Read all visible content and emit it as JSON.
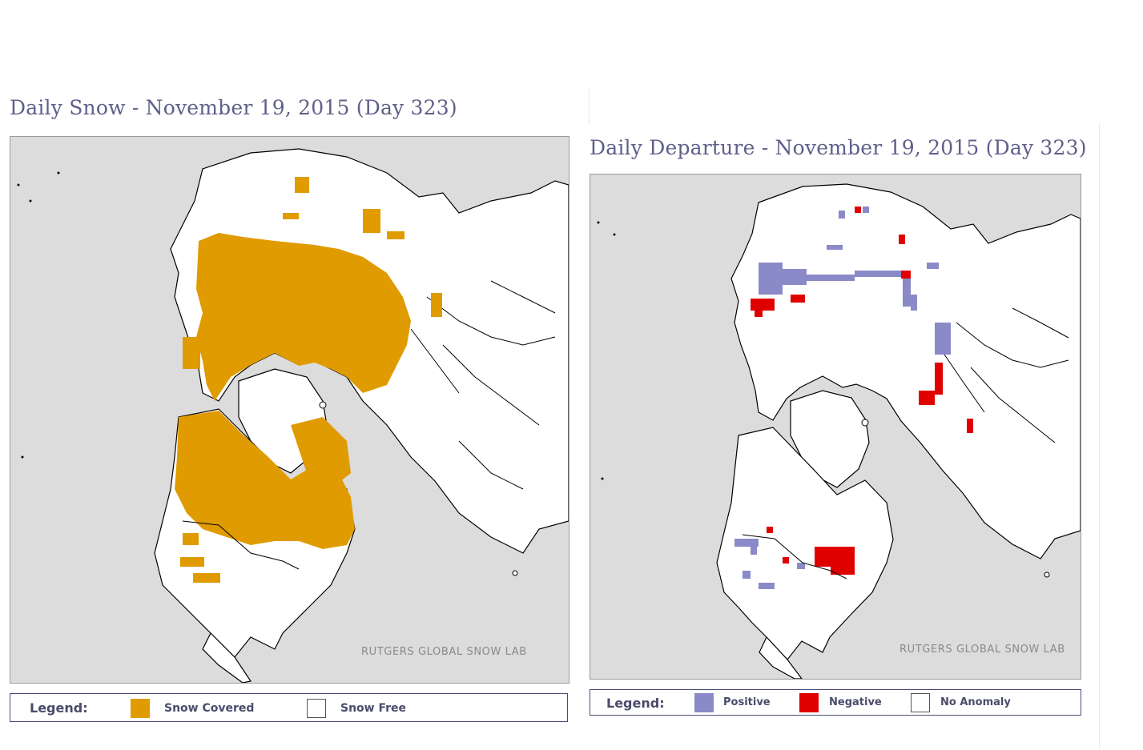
{
  "colors": {
    "ocean": "#dcdcdc",
    "land": "#ffffff",
    "snow": "#e09b00",
    "positive": "#8a8ac8",
    "negative": "#e00000",
    "outline": "#000000"
  },
  "left_panel": {
    "title": "Daily Snow - November 19, 2015 (Day 323)",
    "credit": "RUTGERS GLOBAL SNOW LAB",
    "legend": {
      "title": "Legend:",
      "items": [
        {
          "label": "Snow Covered",
          "color": "#e09b00"
        },
        {
          "label": "Snow Free",
          "color": "#ffffff"
        }
      ]
    }
  },
  "right_panel": {
    "title": "Daily Departure - November 19, 2015 (Day 323)",
    "credit": "RUTGERS GLOBAL SNOW LAB",
    "legend": {
      "title": "Legend:",
      "items": [
        {
          "label": "Positive",
          "color": "#8a8ac8"
        },
        {
          "label": "Negative",
          "color": "#e00000"
        },
        {
          "label": "No Anomaly",
          "color": "#ffffff"
        }
      ]
    }
  }
}
